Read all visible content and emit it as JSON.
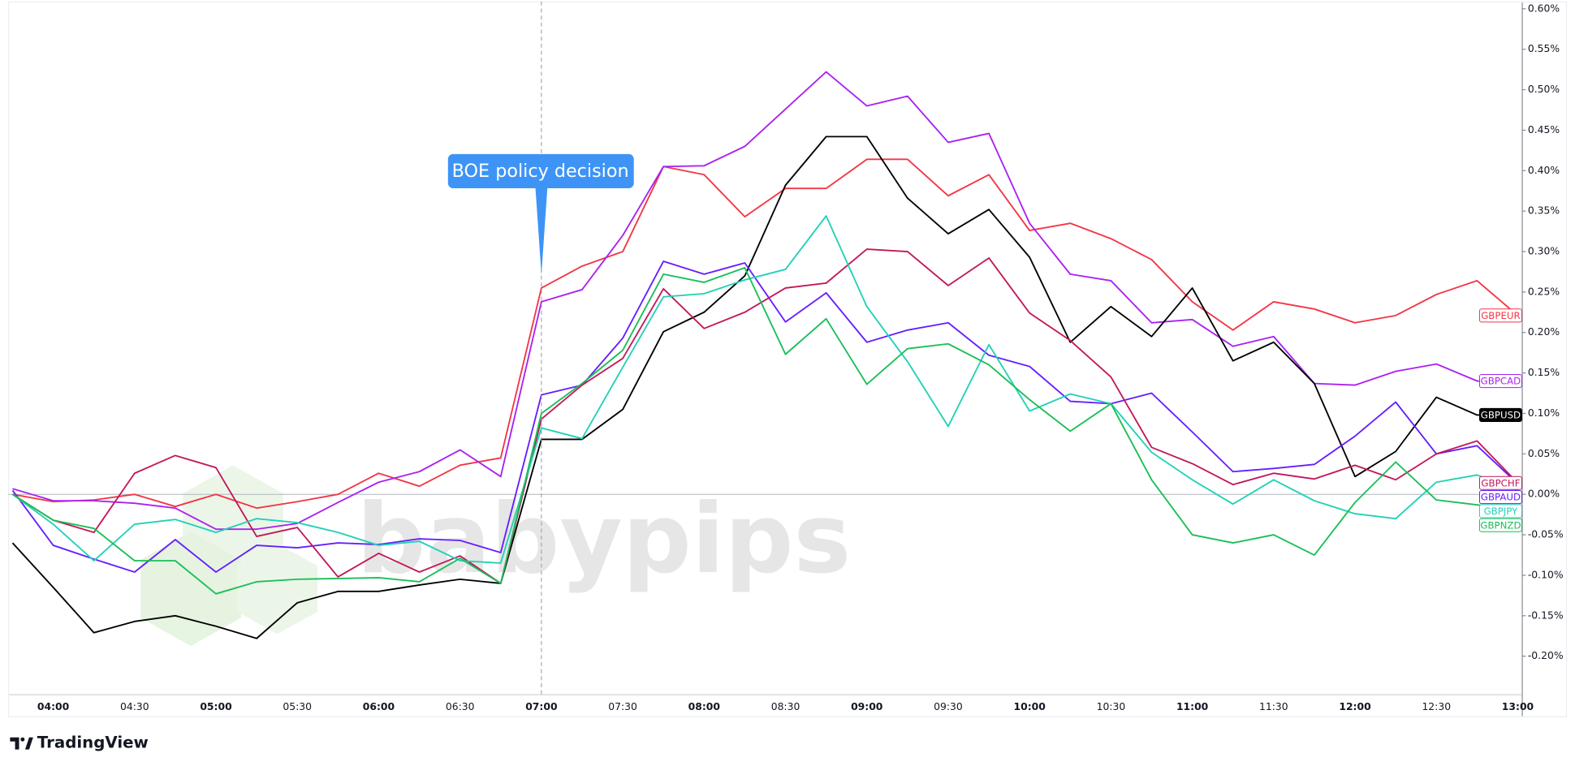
{
  "chart_data": {
    "type": "line",
    "annotation": {
      "text": "BOE policy decision",
      "x": "07:00"
    },
    "categories": [
      null,
      "04:00",
      null,
      "04:30",
      null,
      "05:00",
      null,
      "05:30",
      null,
      "06:00",
      null,
      "06:30",
      null,
      "07:00",
      null,
      "07:30",
      null,
      "08:00",
      null,
      "08:30",
      null,
      "09:00",
      null,
      "09:30",
      null,
      "10:00",
      null,
      "10:30",
      null,
      "11:00",
      null,
      "11:30",
      null,
      "12:00",
      null,
      "12:30",
      null,
      "13:00"
    ],
    "series": [
      {
        "name": "GBPEUR",
        "color": "#f23645",
        "values": [
          0,
          -0.009,
          -0.007,
          0,
          -0.015,
          0,
          -0.017,
          -0.009,
          0,
          0.026,
          0.01,
          0.036,
          0.045,
          0.255,
          0.282,
          0.3,
          0.405,
          0.395,
          0.343,
          0.378,
          0.378,
          0.414,
          0.414,
          0.369,
          0.395,
          0.326,
          0.335,
          0.316,
          0.29,
          0.238,
          0.203,
          0.238,
          0.229,
          0.212,
          0.221,
          0.247,
          0.264,
          0.221
        ]
      },
      {
        "name": "GBPCAD",
        "color": "#aa22f0",
        "values": [
          0.007,
          -0.008,
          -0.008,
          -0.011,
          -0.017,
          -0.043,
          -0.043,
          -0.036,
          -0.01,
          0.015,
          0.028,
          0.055,
          0.022,
          0.238,
          0.253,
          0.32,
          0.405,
          0.406,
          0.43,
          0.476,
          0.522,
          0.48,
          0.492,
          0.435,
          0.446,
          0.335,
          0.272,
          0.264,
          0.212,
          0.216,
          0.183,
          0.195,
          0.137,
          0.135,
          0.152,
          0.161,
          0.14,
          0.14
        ]
      },
      {
        "name": "GBPUSD",
        "color": "#000000",
        "values": [
          -0.06,
          -0.115,
          -0.171,
          -0.157,
          -0.15,
          -0.163,
          -0.178,
          -0.134,
          -0.12,
          -0.12,
          -0.112,
          -0.105,
          -0.11,
          0.068,
          0.068,
          0.105,
          0.201,
          0.225,
          0.27,
          0.382,
          0.442,
          0.442,
          0.366,
          0.322,
          0.352,
          0.293,
          0.188,
          0.232,
          0.195,
          0.255,
          0.165,
          0.188,
          0.137,
          0.022,
          0.053,
          0.12,
          0.098,
          0.098
        ]
      },
      {
        "name": "GBPAUD",
        "color": "#651fff",
        "values": [
          0.005,
          -0.063,
          -0.08,
          -0.096,
          -0.056,
          -0.096,
          -0.063,
          -0.066,
          -0.06,
          -0.062,
          -0.055,
          -0.057,
          -0.072,
          0.123,
          0.135,
          0.193,
          0.288,
          0.272,
          0.286,
          0.213,
          0.249,
          0.188,
          0.203,
          0.212,
          0.172,
          0.158,
          0.115,
          0.112,
          0.125,
          0.077,
          0.028,
          0.032,
          0.037,
          0.072,
          0.114,
          0.05,
          0.06,
          0.013
        ]
      },
      {
        "name": "GBPCHF",
        "color": "#c2185b",
        "values": [
          0,
          -0.032,
          -0.047,
          0.026,
          0.048,
          0.033,
          -0.052,
          -0.041,
          -0.102,
          -0.073,
          -0.096,
          -0.076,
          -0.11,
          0.093,
          0.135,
          0.168,
          0.254,
          0.205,
          0.225,
          0.255,
          0.261,
          0.303,
          0.3,
          0.258,
          0.292,
          0.224,
          0.19,
          0.145,
          0.058,
          0.038,
          0.012,
          0.026,
          0.019,
          0.036,
          0.018,
          0.05,
          0.066,
          0.014
        ]
      },
      {
        "name": "GBPJPY",
        "color": "#22d1b6",
        "values": [
          0,
          -0.037,
          -0.082,
          -0.037,
          -0.031,
          -0.047,
          -0.03,
          -0.035,
          -0.047,
          -0.063,
          -0.058,
          -0.082,
          -0.085,
          0.082,
          0.069,
          0.157,
          0.244,
          0.248,
          0.265,
          0.278,
          0.344,
          0.232,
          0.164,
          0.084,
          0.185,
          0.103,
          0.124,
          0.112,
          0.052,
          0.018,
          -0.012,
          0.018,
          -0.008,
          -0.024,
          -0.03,
          0.015,
          0.024,
          0.005
        ]
      },
      {
        "name": "GBPNZD",
        "color": "#19bf57",
        "values": [
          0,
          -0.032,
          -0.042,
          -0.082,
          -0.082,
          -0.123,
          -0.108,
          -0.105,
          -0.104,
          -0.103,
          -0.108,
          -0.079,
          -0.11,
          0.1,
          0.137,
          0.178,
          0.272,
          0.262,
          0.28,
          0.173,
          0.217,
          0.136,
          0.18,
          0.186,
          0.16,
          0.117,
          0.078,
          0.112,
          0.018,
          -0.05,
          -0.06,
          -0.05,
          -0.075,
          -0.01,
          0.04,
          -0.007,
          -0.013,
          -0.018
        ]
      }
    ],
    "ylim": [
      -0.247,
      0.609
    ],
    "yticks": [
      {
        "value": 0.6,
        "label": "0.60%"
      },
      {
        "value": 0.55,
        "label": "0.55%"
      },
      {
        "value": 0.5,
        "label": "0.50%"
      },
      {
        "value": 0.45,
        "label": "0.45%"
      },
      {
        "value": 0.4,
        "label": "0.40%"
      },
      {
        "value": 0.35,
        "label": "0.35%"
      },
      {
        "value": 0.3,
        "label": "0.30%"
      },
      {
        "value": 0.25,
        "label": "0.25%"
      },
      {
        "value": 0.2,
        "label": "0.20%"
      },
      {
        "value": 0.15,
        "label": "0.15%"
      },
      {
        "value": 0.1,
        "label": "0.10%"
      },
      {
        "value": 0.05,
        "label": "0.05%"
      },
      {
        "value": 0,
        "label": "0.00%"
      },
      {
        "value": -0.05,
        "label": "-0.05%"
      },
      {
        "value": -0.1,
        "label": "-0.10%"
      },
      {
        "value": -0.15,
        "label": "-0.15%"
      },
      {
        "value": -0.2,
        "label": "-0.20%"
      }
    ],
    "grid": false,
    "zero_line": true
  },
  "watermark": "babypips",
  "branding": "TradingView"
}
